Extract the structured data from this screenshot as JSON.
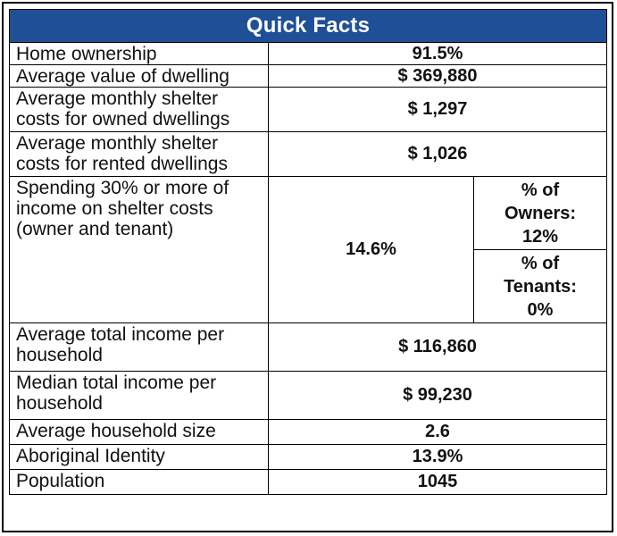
{
  "table": {
    "title": "Quick Facts",
    "rows": [
      {
        "label_lines": [
          "Home ownership"
        ],
        "value": "91.5%"
      },
      {
        "label_lines": [
          "Average value of dwelling"
        ],
        "value": "$ 369,880"
      },
      {
        "label_lines": [
          "Average monthly shelter",
          "costs for owned dwellings"
        ],
        "value": "$ 1,297"
      },
      {
        "label_lines": [
          "Average monthly shelter",
          "costs for rented dwellings"
        ],
        "value": "$ 1,026"
      },
      {
        "label_lines": [
          "Spending 30% or more of",
          "income on shelter costs",
          "(owner and tenant)"
        ],
        "value": "14.6%",
        "sub_values": [
          {
            "lines": [
              "% of",
              "Owners:",
              "12%"
            ]
          },
          {
            "lines": [
              "% of",
              "Tenants:",
              "0%"
            ]
          }
        ]
      },
      {
        "label_lines": [
          "Average total income per",
          "household"
        ],
        "value": "$ 116,860"
      },
      {
        "label_lines": [
          "Median total income per",
          "household"
        ],
        "value": "$ 99,230"
      },
      {
        "label_lines": [
          "Average household size"
        ],
        "value": "2.6"
      },
      {
        "label_lines": [
          "Aboriginal Identity"
        ],
        "value": "13.9%"
      },
      {
        "label_lines": [
          "Population"
        ],
        "value": "1045"
      }
    ]
  },
  "colors": {
    "header_bg": "#1f4f96",
    "header_text": "#ffffff"
  }
}
